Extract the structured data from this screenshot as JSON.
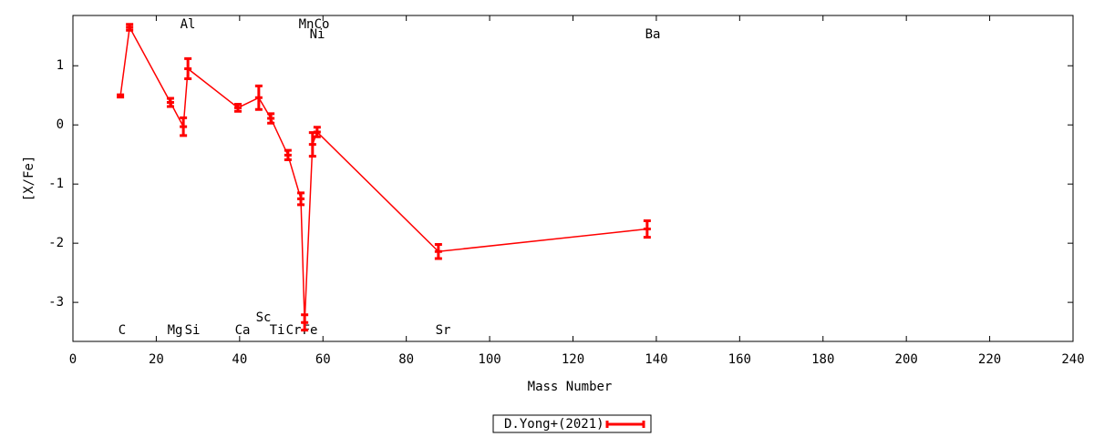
{
  "chart_data": {
    "type": "errorline",
    "xlabel": "Mass Number",
    "ylabel": "[X/Fe]",
    "series": [
      {
        "name": "D.Yong+(2021)",
        "color": "#ff0000",
        "x": [
          11.4,
          13.6,
          23.4,
          26.5,
          27.6,
          39.6,
          44.6,
          47.5,
          51.6,
          54.7,
          55.6,
          57.5,
          58.6,
          87.7,
          137.8
        ],
        "values": [
          0.49,
          1.65,
          0.38,
          -0.03,
          0.95,
          0.29,
          0.46,
          0.11,
          -0.51,
          -1.25,
          -3.34,
          -0.33,
          -0.12,
          -2.14,
          -1.76
        ],
        "errors": [
          0.02,
          0.05,
          0.07,
          0.15,
          0.17,
          0.06,
          0.2,
          0.08,
          0.08,
          0.1,
          0.13,
          0.2,
          0.08,
          0.12,
          0.14
        ]
      }
    ],
    "annotations": [
      "C",
      "Al",
      "Mg",
      "Si",
      "Ca",
      "Sc",
      "Ti",
      "Cr",
      "Fe",
      "Mn",
      "Co",
      "Ni",
      "Sr",
      "Ba"
    ],
    "xlim": [
      0,
      240
    ],
    "xticks": [
      0,
      20,
      40,
      60,
      80,
      100,
      120,
      140,
      160,
      180,
      200,
      220,
      240
    ],
    "ylim": [
      -3.66,
      1.85
    ],
    "yticks": [
      -3,
      -2,
      -1,
      0,
      1
    ],
    "legend": "bottom-center"
  }
}
